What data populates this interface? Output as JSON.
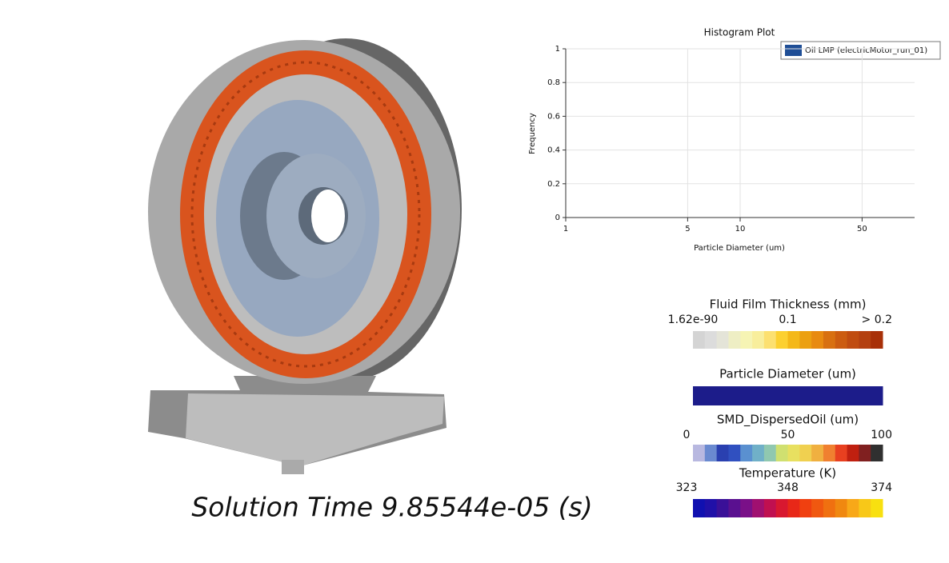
{
  "chart_data": {
    "type": "histogram",
    "title": "Histogram Plot",
    "xlabel": "Particle Diameter (um)",
    "ylabel": "Frequency",
    "log_x": true,
    "grid": true,
    "legend": "upper right",
    "xlim": [
      1,
      100
    ],
    "xticks": [
      1,
      5,
      10,
      50
    ],
    "ylim": [
      0,
      1
    ],
    "yticks": [
      0,
      0.2,
      0.4,
      0.6,
      0.8,
      1
    ],
    "series": [
      {
        "name": "Oil LMP (electricMotor_run_01)",
        "color": "#1f4e96"
      }
    ]
  },
  "scalar_bars": [
    {
      "title": "Fluid Film Thickness (mm)",
      "labels": [
        "1.62e-90",
        "0.1",
        "> 0.2"
      ],
      "colors": [
        "#d4d4d4",
        "#dcdcdc",
        "#e4e4d8",
        "#eeeec4",
        "#f6f4b4",
        "#f8ee9c",
        "#fce070",
        "#fcd030",
        "#f4b818",
        "#eca010",
        "#e88a10",
        "#d87010",
        "#cc5c10",
        "#c04c10",
        "#b44010",
        "#a83008"
      ]
    },
    {
      "title": "Particle Diameter (um)",
      "colors": [
        "#1c1c8a"
      ]
    },
    {
      "title": "SMD_DispersedOil (um)",
      "labels": [
        "0",
        "50",
        "100"
      ],
      "colors": [
        "#b8b8e0",
        "#6a8ad0",
        "#2a40b0",
        "#3050c0",
        "#5a90d0",
        "#70b0c8",
        "#90c8b0",
        "#d0e070",
        "#e8e060",
        "#f0d050",
        "#f0b040",
        "#f08030",
        "#e84020",
        "#c02010",
        "#802020",
        "#303030"
      ]
    },
    {
      "title": "Temperature (K)",
      "labels": [
        "323",
        "348",
        "374"
      ],
      "colors": [
        "#1010b0",
        "#2010a8",
        "#3a1098",
        "#5a1090",
        "#7a1088",
        "#a01070",
        "#c01050",
        "#d81830",
        "#e82818",
        "#f04010",
        "#f05810",
        "#f07010",
        "#f08810",
        "#f8a818",
        "#f8c818",
        "#f8e010"
      ]
    }
  ],
  "solution_time": "Solution Time 9.85544e-05 (s)"
}
